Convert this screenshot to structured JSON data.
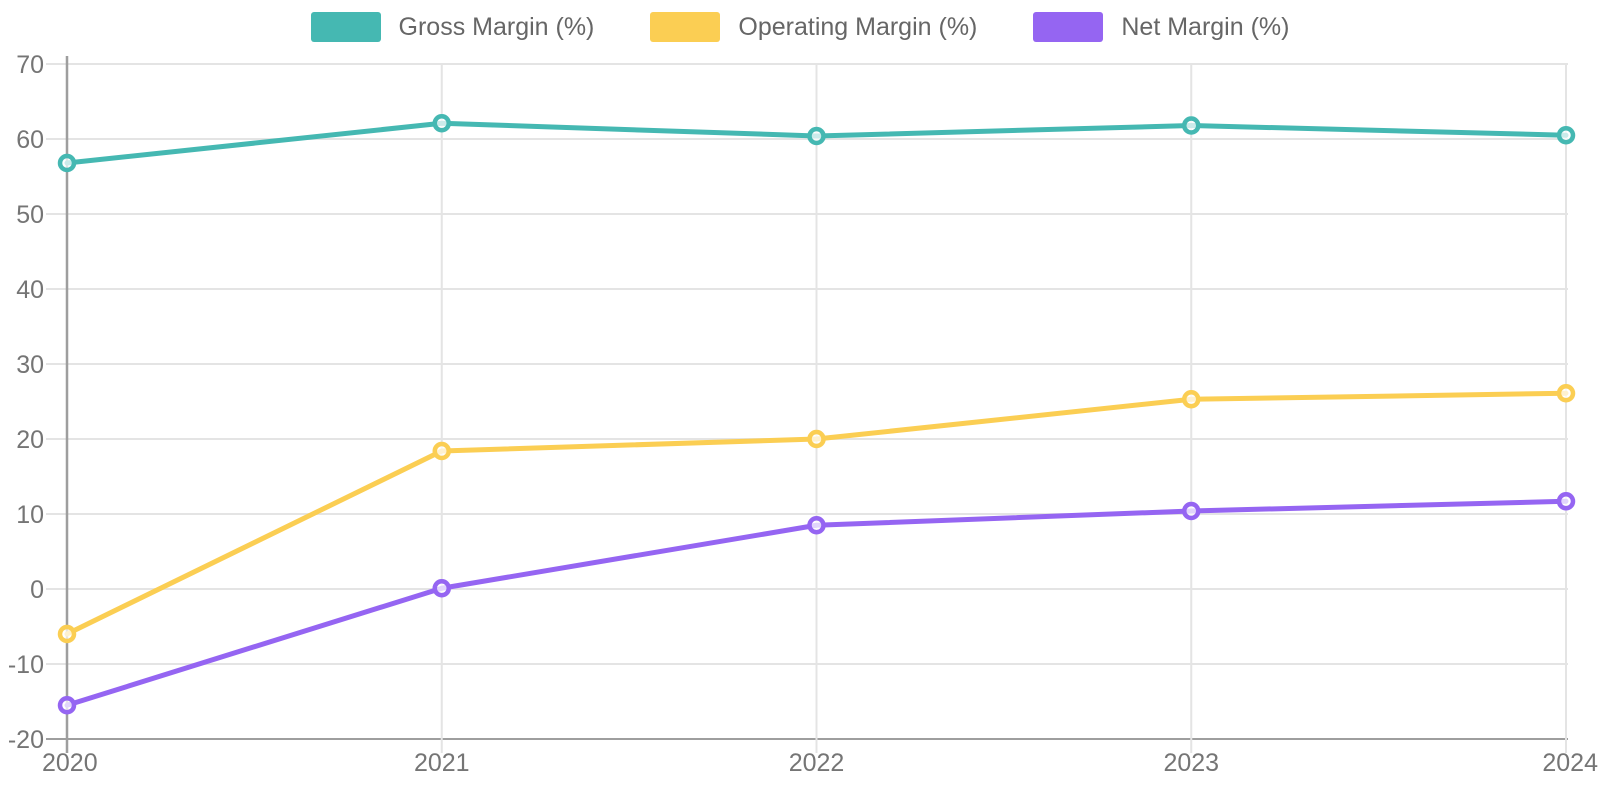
{
  "chart_data": {
    "type": "line",
    "x": [
      2020,
      2021,
      2022,
      2023,
      2024
    ],
    "series": [
      {
        "name": "Gross Margin (%)",
        "color": "#45B8B2",
        "values": [
          56.8,
          62.1,
          60.4,
          61.8,
          60.5
        ]
      },
      {
        "name": "Operating Margin (%)",
        "color": "#FBCE53",
        "values": [
          -6.0,
          18.4,
          20.0,
          25.3,
          26.1
        ]
      },
      {
        "name": "Net Margin (%)",
        "color": "#9565F2",
        "values": [
          -15.5,
          0.1,
          8.5,
          10.4,
          11.7
        ]
      }
    ],
    "title": "",
    "xlabel": "",
    "ylabel": "",
    "ylim": [
      -20,
      70
    ],
    "yticks": [
      70,
      60,
      50,
      40,
      30,
      20,
      10,
      0,
      -10,
      -20
    ],
    "xticks": [
      "2020",
      "2021",
      "2022",
      "2023",
      "2024"
    ],
    "grid": true,
    "legend_position": "top"
  },
  "colors": {
    "grid": "#E4E4E4",
    "axis": "#9E9E9E",
    "tick_text": "#757575",
    "legend_text": "#666666",
    "background": "#FFFFFF",
    "point_fill": "rgba(255,255,255,0.72)"
  }
}
